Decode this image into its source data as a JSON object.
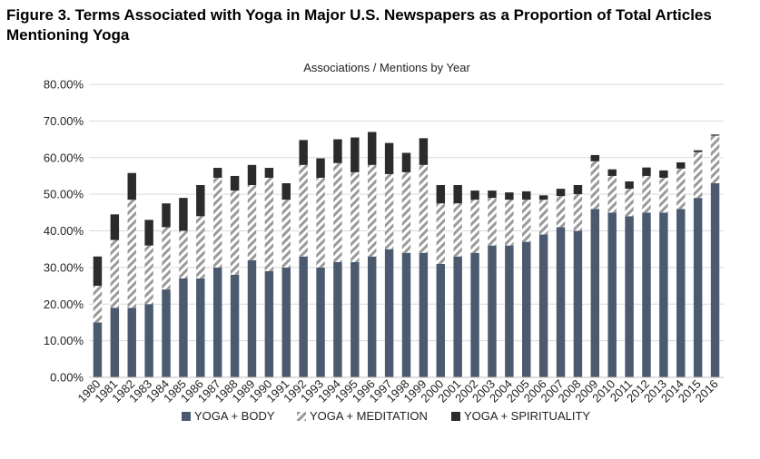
{
  "figure": {
    "title": "Figure 3.  Terms Associated with Yoga in Major U.S. Newspapers as a Proportion of Total Articles Mentioning Yoga"
  },
  "chart_data": {
    "type": "bar",
    "stacked": true,
    "title": "Associations / Mentions by Year",
    "xlabel": "",
    "ylabel": "",
    "ylim": [
      0,
      80
    ],
    "yticks": [
      "0.00%",
      "10.00%",
      "20.00%",
      "30.00%",
      "40.00%",
      "50.00%",
      "60.00%",
      "70.00%",
      "80.00%"
    ],
    "grid": true,
    "legend_position": "bottom",
    "categories": [
      "1980",
      "1981",
      "1982",
      "1983",
      "1984",
      "1985",
      "1986",
      "1987",
      "1988",
      "1989",
      "1990",
      "1991",
      "1992",
      "1993",
      "1994",
      "1995",
      "1996",
      "1997",
      "1998",
      "1999",
      "2000",
      "2001",
      "2002",
      "2003",
      "2004",
      "2005",
      "2006",
      "2007",
      "2008",
      "2009",
      "2010",
      "2011",
      "2012",
      "2013",
      "2014",
      "2015",
      "2016"
    ],
    "series": [
      {
        "name": "YOGA + BODY",
        "color": "#4b5a6e",
        "pattern": "solid",
        "values": [
          15,
          19,
          19,
          20,
          24,
          27,
          27,
          30,
          28,
          32,
          29,
          30,
          33,
          30,
          31.5,
          31.5,
          33,
          35,
          34,
          34,
          31,
          33,
          34,
          36,
          36,
          37,
          39,
          41,
          40,
          46,
          45,
          44,
          45,
          45,
          46,
          49,
          53
        ]
      },
      {
        "name": "YOGA + MEDITATION",
        "color": "#a0a0a0",
        "pattern": "diagonal-stripes",
        "values": [
          10,
          18.5,
          29.5,
          16,
          17,
          13,
          17,
          24.5,
          23,
          20.5,
          25.5,
          18.5,
          25,
          24.5,
          27,
          24.5,
          25,
          20.5,
          22,
          24,
          16.5,
          14.5,
          14.5,
          13,
          12.5,
          11.5,
          9.5,
          8.5,
          10,
          13,
          10,
          7.5,
          10,
          9.5,
          11,
          12.5,
          13
        ]
      },
      {
        "name": "YOGA + SPIRITUALITY",
        "color": "#2b2b2b",
        "pattern": "solid",
        "values": [
          8,
          7,
          7.3,
          7,
          6.5,
          9,
          8.5,
          2.7,
          4,
          5.5,
          2.7,
          4.5,
          6.8,
          5.3,
          6.5,
          9.5,
          9,
          8.5,
          5.3,
          7.3,
          5,
          5,
          2.5,
          2,
          2,
          2.3,
          1.2,
          2,
          2.5,
          1.7,
          1.8,
          2,
          2.3,
          2,
          1.7,
          0.5,
          0.3
        ]
      }
    ]
  }
}
